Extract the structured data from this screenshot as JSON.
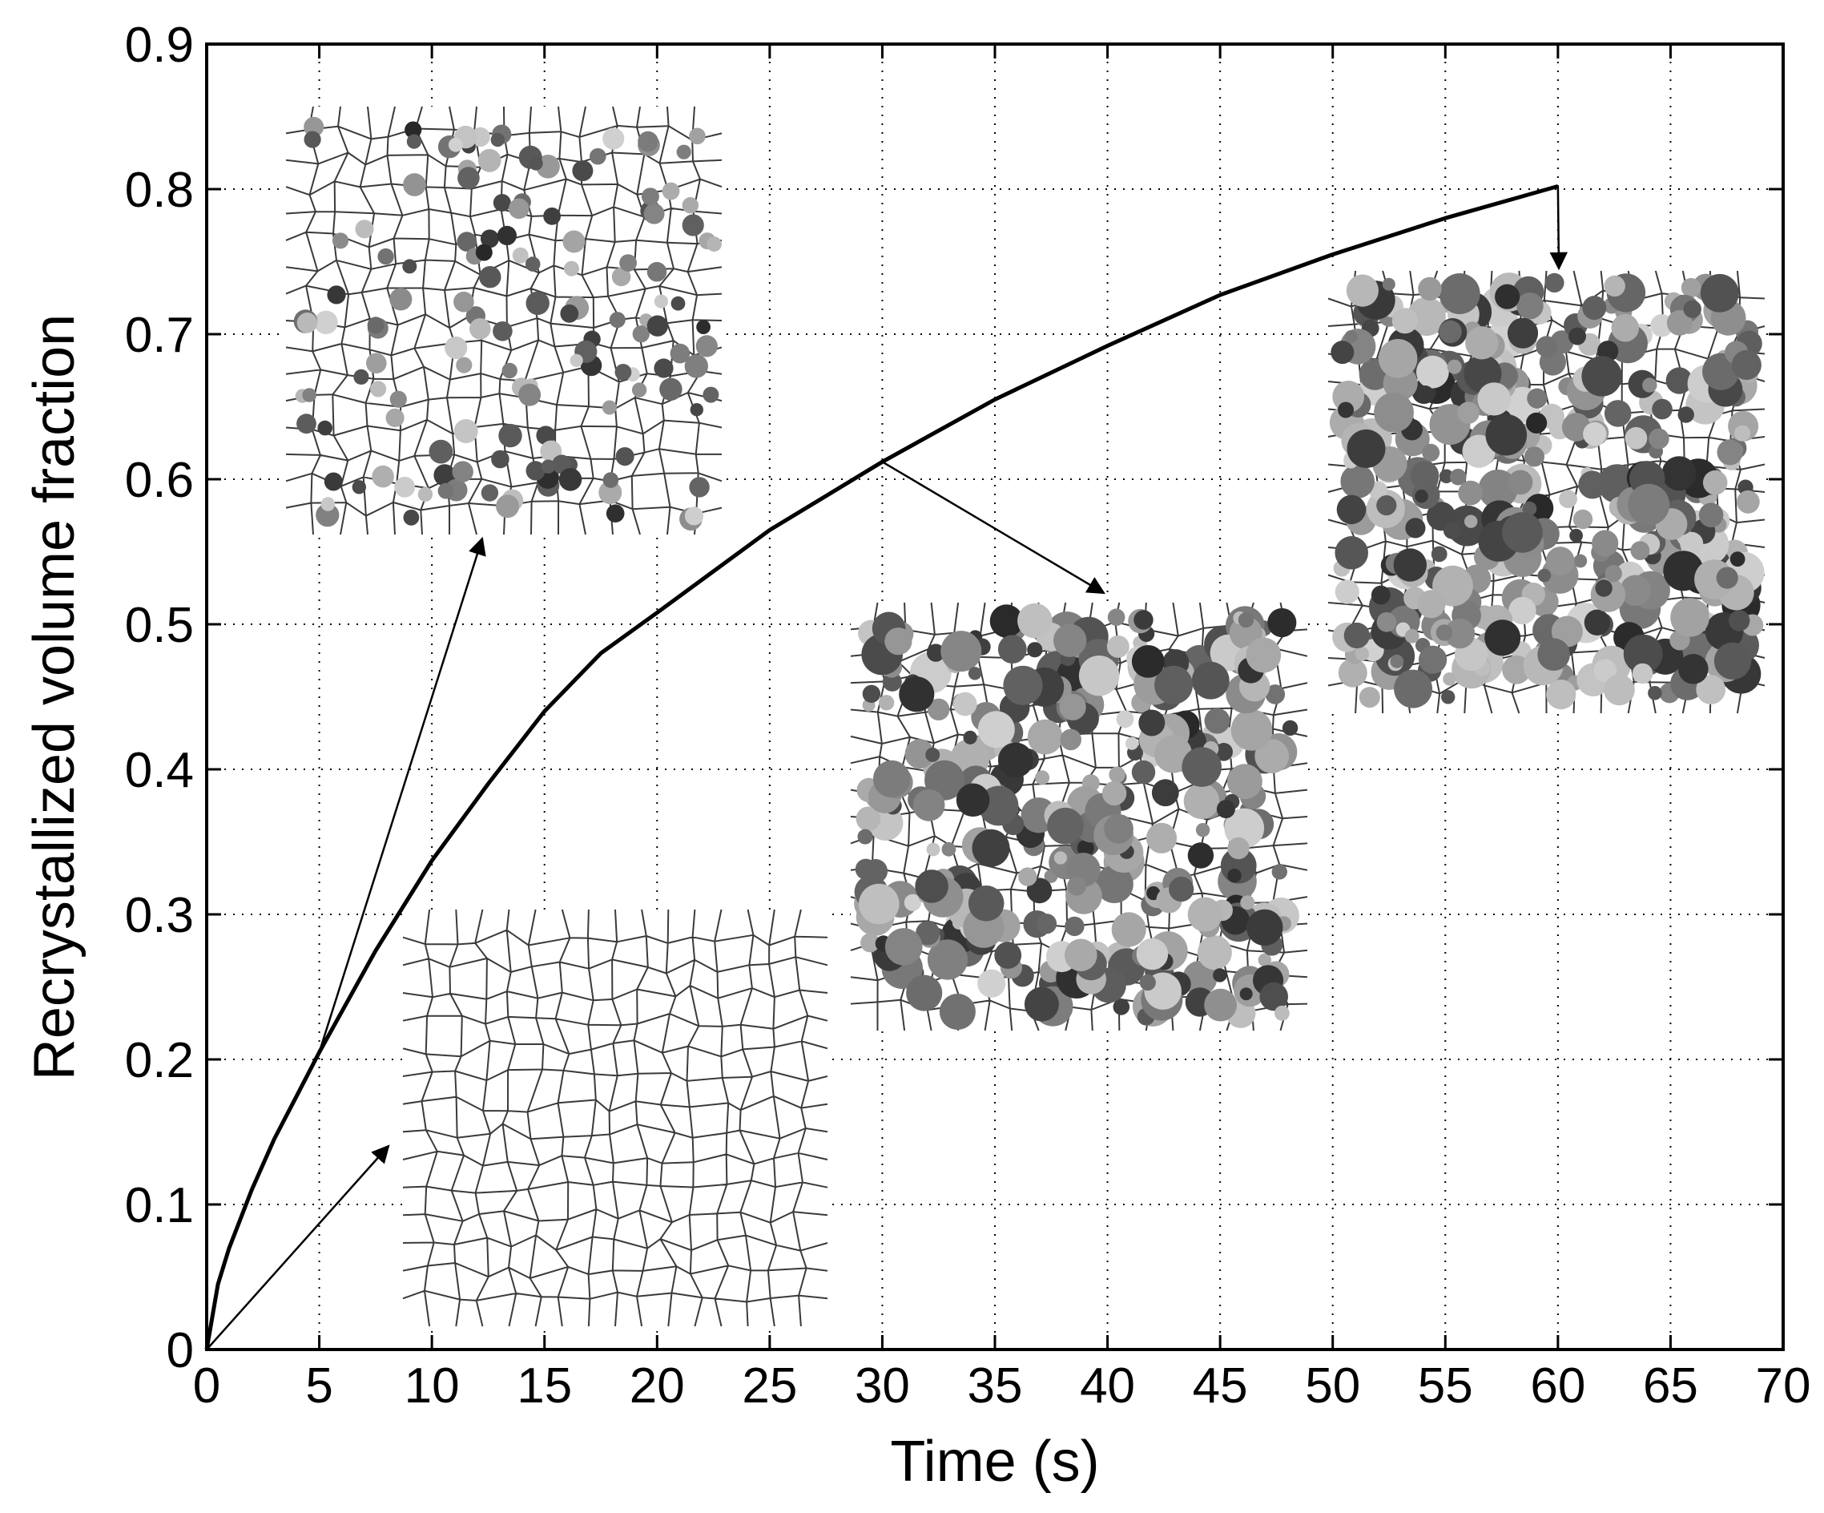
{
  "chart_data": {
    "type": "line",
    "title": "",
    "xlabel": "Time (s)",
    "ylabel": "Recrystallized volume fraction",
    "xlim": [
      0,
      70
    ],
    "ylim": [
      0,
      0.9
    ],
    "xticks": [
      0,
      5,
      10,
      15,
      20,
      25,
      30,
      35,
      40,
      45,
      50,
      55,
      60,
      65,
      70
    ],
    "yticks": [
      0,
      0.1,
      0.2,
      0.3,
      0.4,
      0.5,
      0.6,
      0.7,
      0.8,
      0.9
    ],
    "x_tick_labels": [
      "0",
      "5",
      "10",
      "15",
      "20",
      "25",
      "30",
      "35",
      "40",
      "45",
      "50",
      "55",
      "60",
      "65",
      "70"
    ],
    "y_tick_labels": [
      "0",
      "0.1",
      "0.2",
      "0.3",
      "0.4",
      "0.5",
      "0.6",
      "0.7",
      "0.8",
      "0.9"
    ],
    "grid": true,
    "legend": "none",
    "series": [
      {
        "color": "#000000",
        "x": [
          0,
          0.5,
          1,
          2,
          3,
          4,
          5,
          7.5,
          10,
          12.5,
          15,
          17.5,
          20,
          25,
          30,
          35,
          40,
          45,
          50,
          55,
          60
        ],
        "y": [
          0,
          0.045,
          0.07,
          0.11,
          0.145,
          0.175,
          0.205,
          0.275,
          0.337,
          0.39,
          0.44,
          0.48,
          0.508,
          0.565,
          0.612,
          0.655,
          0.692,
          0.727,
          0.755,
          0.78,
          0.802
        ]
      }
    ],
    "annotations": [
      {
        "kind": "microstructure-inset",
        "stage": "initial",
        "from": [
          0,
          0
        ]
      },
      {
        "kind": "microstructure-inset",
        "stage": "early",
        "from": [
          5,
          0.205
        ]
      },
      {
        "kind": "microstructure-inset",
        "stage": "intermediate",
        "from": [
          30,
          0.612
        ]
      },
      {
        "kind": "microstructure-inset",
        "stage": "late",
        "from": [
          60,
          0.802
        ]
      }
    ]
  }
}
